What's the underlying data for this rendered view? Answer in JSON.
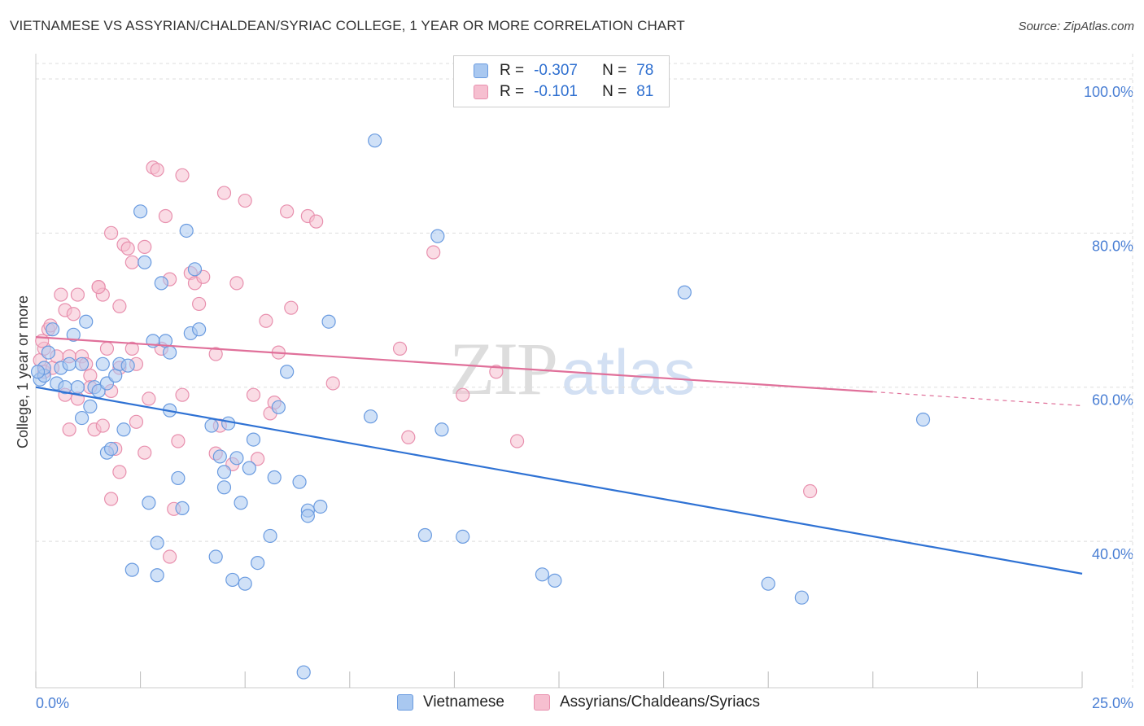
{
  "title": "VIETNAMESE VS ASSYRIAN/CHALDEAN/SYRIAC COLLEGE, 1 YEAR OR MORE CORRELATION CHART",
  "source": "Source: ZipAtlas.com",
  "watermark": {
    "zip": "ZIP",
    "atlas": "atlas"
  },
  "legend": {
    "rows": [
      {
        "r_label": "R =",
        "r_value": "-0.307",
        "n_label": "N =",
        "n_value": "78"
      },
      {
        "r_label": "R =",
        "r_value": "-0.101",
        "n_label": "N =",
        "n_value": "81"
      }
    ]
  },
  "bottom_legend": {
    "items": [
      {
        "label": "Vietnamese"
      },
      {
        "label": "Assyrians/Chaldeans/Syriacs"
      }
    ]
  },
  "colors": {
    "blue_fill": "#a9c8f0",
    "blue_stroke": "#6a9be0",
    "blue_line": "#2f72d4",
    "pink_fill": "#f6bfd0",
    "pink_stroke": "#e890ae",
    "pink_line": "#e0709a",
    "grid": "#dddddd",
    "tick_text": "#4a7fd4"
  },
  "chart_data": {
    "type": "scatter",
    "title": "VIETNAMESE VS ASSYRIAN/CHALDEAN/SYRIAC COLLEGE, 1 YEAR OR MORE CORRELATION CHART",
    "xlabel": "",
    "ylabel": "College, 1 year or more",
    "xlim": [
      0,
      25
    ],
    "ylim": [
      21,
      102
    ],
    "x_tick_labels": [
      "0.0%",
      "25.0%"
    ],
    "y_ticks": [
      40,
      60,
      80,
      100
    ],
    "y_tick_labels": [
      "40.0%",
      "60.0%",
      "80.0%",
      "100.0%"
    ],
    "grid": true,
    "series": [
      {
        "name": "Vietnamese",
        "r": -0.307,
        "n": 78,
        "trend": {
          "x0": 0,
          "y0": 60.0,
          "x1": 25,
          "y1": 35.8
        },
        "points": [
          [
            0.1,
            61.0
          ],
          [
            0.2,
            61.5
          ],
          [
            0.2,
            62.5
          ],
          [
            0.3,
            64.5
          ],
          [
            0.4,
            67.5
          ],
          [
            0.5,
            60.5
          ],
          [
            0.6,
            62.5
          ],
          [
            0.7,
            60.0
          ],
          [
            0.8,
            63.0
          ],
          [
            0.9,
            66.8
          ],
          [
            1.0,
            60.0
          ],
          [
            1.1,
            56.0
          ],
          [
            1.1,
            63.0
          ],
          [
            1.2,
            68.5
          ],
          [
            1.3,
            57.5
          ],
          [
            1.4,
            60.0
          ],
          [
            1.5,
            59.5
          ],
          [
            1.6,
            63.0
          ],
          [
            1.7,
            60.5
          ],
          [
            1.7,
            51.5
          ],
          [
            1.8,
            52.0
          ],
          [
            1.9,
            61.5
          ],
          [
            2.0,
            63.0
          ],
          [
            2.1,
            54.5
          ],
          [
            2.2,
            62.8
          ],
          [
            2.3,
            36.3
          ],
          [
            2.5,
            82.8
          ],
          [
            2.6,
            76.2
          ],
          [
            2.7,
            45.0
          ],
          [
            2.8,
            66.0
          ],
          [
            2.9,
            35.6
          ],
          [
            2.9,
            39.8
          ],
          [
            3.0,
            73.5
          ],
          [
            3.1,
            66.0
          ],
          [
            3.2,
            64.5
          ],
          [
            3.2,
            57.0
          ],
          [
            3.4,
            48.2
          ],
          [
            3.5,
            44.3
          ],
          [
            3.6,
            80.3
          ],
          [
            3.7,
            67.0
          ],
          [
            3.8,
            75.3
          ],
          [
            3.9,
            67.5
          ],
          [
            4.2,
            55.0
          ],
          [
            4.3,
            38.0
          ],
          [
            4.4,
            51.0
          ],
          [
            4.5,
            49.0
          ],
          [
            4.5,
            47.0
          ],
          [
            4.6,
            55.3
          ],
          [
            4.7,
            35.0
          ],
          [
            4.8,
            50.8
          ],
          [
            4.9,
            45.0
          ],
          [
            5.0,
            34.5
          ],
          [
            5.1,
            49.5
          ],
          [
            5.2,
            53.2
          ],
          [
            5.3,
            37.2
          ],
          [
            5.6,
            40.7
          ],
          [
            5.7,
            48.3
          ],
          [
            5.8,
            57.4
          ],
          [
            6.0,
            62.0
          ],
          [
            6.3,
            47.7
          ],
          [
            6.4,
            23.0
          ],
          [
            6.5,
            44.0
          ],
          [
            6.5,
            43.3
          ],
          [
            6.8,
            44.5
          ],
          [
            7.0,
            68.5
          ],
          [
            8.0,
            56.2
          ],
          [
            8.1,
            92.0
          ],
          [
            9.3,
            40.8
          ],
          [
            9.6,
            79.6
          ],
          [
            9.7,
            54.5
          ],
          [
            10.2,
            40.6
          ],
          [
            12.1,
            35.7
          ],
          [
            12.4,
            34.9
          ],
          [
            15.5,
            72.3
          ],
          [
            17.5,
            34.5
          ],
          [
            18.3,
            32.7
          ],
          [
            21.2,
            55.8
          ],
          [
            0.05,
            62.0
          ]
        ]
      },
      {
        "name": "Assyrians/Chaldeans/Syriacs",
        "r": -0.101,
        "n": 81,
        "trend": {
          "x0": 0,
          "y0": 66.5,
          "x1": 20,
          "y1": 59.4,
          "x_dash_end": 25,
          "y_dash_end": 57.6
        },
        "points": [
          [
            0.1,
            63.5
          ],
          [
            0.2,
            62.0
          ],
          [
            0.2,
            65.0
          ],
          [
            0.3,
            67.5
          ],
          [
            0.4,
            62.5
          ],
          [
            0.5,
            64.0
          ],
          [
            0.6,
            72.0
          ],
          [
            0.7,
            70.0
          ],
          [
            0.7,
            59.0
          ],
          [
            0.8,
            64.0
          ],
          [
            0.8,
            54.5
          ],
          [
            0.9,
            69.5
          ],
          [
            1.0,
            72.0
          ],
          [
            1.0,
            58.5
          ],
          [
            1.1,
            64.0
          ],
          [
            1.2,
            63.0
          ],
          [
            1.3,
            61.5
          ],
          [
            1.3,
            60.0
          ],
          [
            1.4,
            54.5
          ],
          [
            1.5,
            73.0
          ],
          [
            1.6,
            72.0
          ],
          [
            1.6,
            55.0
          ],
          [
            1.7,
            65.0
          ],
          [
            1.8,
            59.5
          ],
          [
            1.8,
            80.0
          ],
          [
            1.9,
            52.0
          ],
          [
            1.8,
            45.5
          ],
          [
            2.0,
            70.5
          ],
          [
            2.0,
            49.0
          ],
          [
            2.1,
            78.5
          ],
          [
            2.2,
            78.0
          ],
          [
            2.3,
            65.0
          ],
          [
            2.3,
            76.2
          ],
          [
            2.4,
            63.0
          ],
          [
            2.4,
            55.5
          ],
          [
            2.6,
            51.5
          ],
          [
            2.6,
            78.2
          ],
          [
            2.7,
            58.5
          ],
          [
            2.8,
            88.5
          ],
          [
            2.9,
            88.2
          ],
          [
            3.0,
            65.0
          ],
          [
            3.1,
            82.2
          ],
          [
            3.2,
            74.0
          ],
          [
            3.3,
            44.2
          ],
          [
            3.4,
            53.0
          ],
          [
            3.5,
            59.0
          ],
          [
            3.5,
            87.5
          ],
          [
            3.7,
            74.8
          ],
          [
            3.8,
            73.5
          ],
          [
            3.9,
            70.8
          ],
          [
            4.0,
            74.3
          ],
          [
            4.3,
            51.4
          ],
          [
            4.3,
            64.3
          ],
          [
            4.4,
            55.0
          ],
          [
            4.5,
            85.2
          ],
          [
            4.7,
            50.0
          ],
          [
            4.8,
            73.5
          ],
          [
            5.0,
            84.2
          ],
          [
            5.2,
            59.0
          ],
          [
            5.3,
            50.7
          ],
          [
            5.5,
            68.6
          ],
          [
            5.6,
            56.6
          ],
          [
            5.7,
            58.0
          ],
          [
            5.8,
            64.5
          ],
          [
            6.0,
            82.8
          ],
          [
            6.1,
            70.3
          ],
          [
            6.5,
            82.2
          ],
          [
            6.7,
            81.5
          ],
          [
            7.1,
            60.5
          ],
          [
            8.7,
            65.0
          ],
          [
            8.9,
            53.5
          ],
          [
            9.5,
            77.5
          ],
          [
            10.2,
            59.0
          ],
          [
            11.0,
            62.0
          ],
          [
            11.5,
            53.0
          ],
          [
            18.5,
            46.5
          ],
          [
            0.15,
            66.0
          ],
          [
            0.35,
            68.0
          ],
          [
            1.5,
            73.0
          ],
          [
            3.2,
            38.0
          ],
          [
            2.0,
            62.5
          ]
        ]
      }
    ]
  }
}
